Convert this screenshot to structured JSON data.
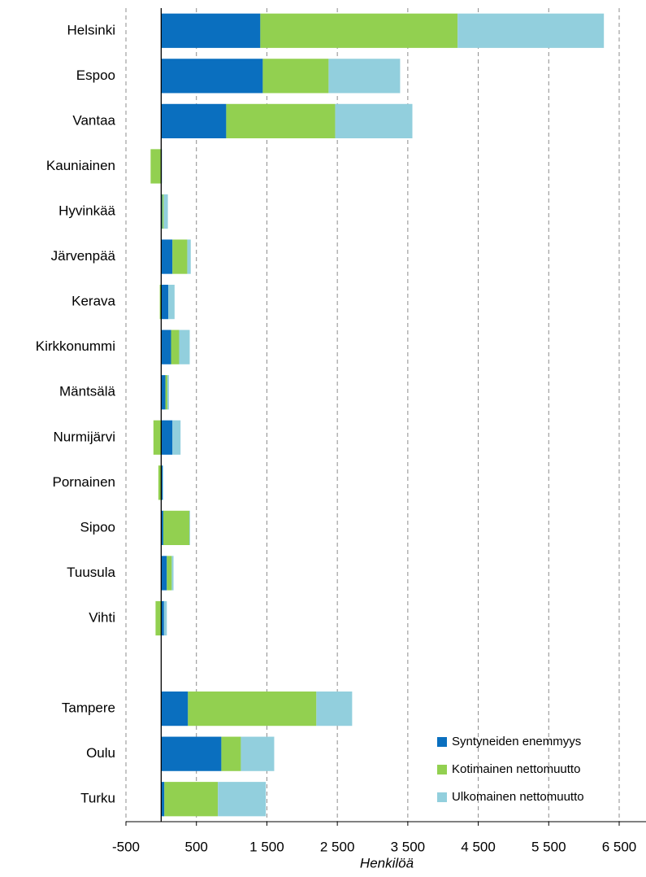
{
  "chart_data": {
    "type": "stacked-bar-horizontal",
    "xlabel": "Henkilöä",
    "categories": [
      "Helsinki",
      "Espoo",
      "Vantaa",
      "Kauniainen",
      "Hyvinkää",
      "Järvenpää",
      "Kerava",
      "Kirkkonummi",
      "Mäntsälä",
      "Nurmijärvi",
      "Pornainen",
      "Sipoo",
      "Tuusula",
      "Vihti",
      null,
      "Tampere",
      "Oulu",
      "Turku"
    ],
    "series": [
      {
        "name": "Syntyneiden enemmyys",
        "color": "#0a6fbf",
        "values": [
          1407,
          1442,
          923,
          10,
          15,
          160,
          100,
          140,
          60,
          160,
          20,
          30,
          80,
          40,
          null,
          380,
          854,
          45
        ]
      },
      {
        "name": "Kotimainen nettomuutto",
        "color": "#92d050",
        "values": [
          2800,
          934,
          1546,
          -150,
          20,
          210,
          -20,
          115,
          30,
          -110,
          -40,
          370,
          70,
          -80,
          null,
          1822,
          277,
          760
        ]
      },
      {
        "name": "Ulkomainen nettomuutto",
        "color": "#92cfdd",
        "values": [
          2076,
          1015,
          1096,
          0,
          60,
          50,
          90,
          150,
          20,
          115,
          10,
          10,
          25,
          40,
          null,
          508,
          473,
          680
        ]
      }
    ],
    "xlim": [
      -500,
      6500
    ],
    "xticks": [
      -500,
      500,
      {
        "value": 1500,
        "label": "1 500"
      },
      {
        "value": 2500,
        "label": "2 500"
      },
      {
        "value": 3500,
        "label": "3 500"
      },
      {
        "value": 4500,
        "label": "4 500"
      },
      {
        "value": 5500,
        "label": "5 500"
      },
      {
        "value": 6500,
        "label": "6 500"
      }
    ],
    "grid": true,
    "legend": "lower right"
  }
}
